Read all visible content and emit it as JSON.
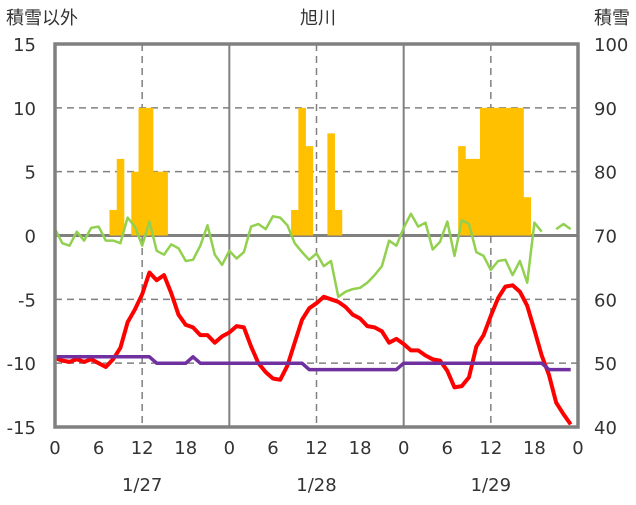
{
  "chart_data": {
    "type": "bar+line",
    "title": "旭川",
    "ylabel_left": "積雪以外",
    "ylabel_right": "積雪",
    "ylim_left": [
      -15,
      15
    ],
    "ylim_right": [
      40,
      100
    ],
    "yticks_left": [
      "15",
      "10",
      "5",
      "0",
      "-5",
      "-10",
      "-15"
    ],
    "yticks_right": [
      "100",
      "90",
      "80",
      "70",
      "60",
      "50",
      "40"
    ],
    "xtick_labels": [
      "0",
      "6",
      "12",
      "18",
      "0",
      "6",
      "12",
      "18",
      "0",
      "6",
      "12",
      "18",
      "0"
    ],
    "date_labels": [
      "1/27",
      "1/28",
      "1/29"
    ],
    "x_hours": 72,
    "grid": "dashed horizontal at ±5, ±10; dashed vertical at 12h; solid at day boundaries",
    "colors": {
      "bars": "#FFC000",
      "red": "#FF0000",
      "green": "#92D050",
      "purple": "#7030A0",
      "axis": "#808080"
    },
    "bars": {
      "axis": "left",
      "hours": [
        8,
        9,
        11,
        12,
        13,
        14,
        15,
        33,
        34,
        35,
        38,
        39,
        56,
        57,
        58,
        59,
        60,
        61,
        62,
        63,
        64,
        65
      ],
      "values": [
        2,
        6,
        5,
        10,
        10,
        5,
        5,
        2,
        10,
        7,
        8,
        2,
        7,
        6,
        6,
        10,
        10,
        10,
        10,
        10,
        10,
        3
      ]
    },
    "series": [
      {
        "name": "red",
        "axis": "left",
        "values": [
          -9.6,
          -9.8,
          -9.9,
          -9.7,
          -9.9,
          -9.7,
          -10.0,
          -10.3,
          -9.7,
          -8.8,
          -6.8,
          -5.8,
          -4.6,
          -2.9,
          -3.5,
          -3.1,
          -4.5,
          -6.2,
          -7.0,
          -7.2,
          -7.8,
          -7.8,
          -8.4,
          -7.9,
          -7.6,
          -7.1,
          -7.2,
          -8.7,
          -10.0,
          -10.7,
          -11.2,
          -11.3,
          -10.2,
          -8.4,
          -6.6,
          -5.7,
          -5.3,
          -4.8,
          -5.0,
          -5.2,
          -5.6,
          -6.2,
          -6.5,
          -7.1,
          -7.2,
          -7.5,
          -8.4,
          -8.1,
          -8.5,
          -9.0,
          -9.0,
          -9.4,
          -9.7,
          -9.8,
          -10.6,
          -11.9,
          -11.8,
          -11.1,
          -8.7,
          -7.8,
          -6.3,
          -4.9,
          -4.0,
          -3.9,
          -4.4,
          -5.5,
          -7.4,
          -9.4,
          -10.9,
          -13.1,
          -14.0,
          -14.8
        ]
      },
      {
        "name": "green",
        "axis": "left",
        "values": [
          0.5,
          -0.6,
          -0.8,
          0.3,
          -0.4,
          0.6,
          0.7,
          -0.4,
          -0.4,
          -0.6,
          1.4,
          0.7,
          -0.8,
          1.1,
          -1.2,
          -1.5,
          -0.7,
          -1.0,
          -2.0,
          -1.9,
          -0.8,
          0.8,
          -1.5,
          -2.3,
          -1.2,
          -1.8,
          -1.3,
          0.7,
          0.9,
          0.5,
          1.5,
          1.4,
          0.8,
          -0.6,
          -1.3,
          -1.9,
          -1.4,
          -2.4,
          -2.0,
          -4.8,
          -4.4,
          -4.2,
          -4.1,
          -3.7,
          -3.1,
          -2.4,
          -0.4,
          -0.8,
          0.6,
          1.7,
          0.7,
          1.0,
          -1.1,
          -0.5,
          1.1,
          -1.6,
          1.2,
          0.9,
          -1.3,
          -1.6,
          -2.7,
          -2.0,
          -1.9,
          -3.1,
          -2.0,
          -3.7,
          1.0,
          0.3,
          null,
          0.5,
          0.9,
          0.5
        ]
      },
      {
        "name": "purple",
        "axis": "right",
        "values": [
          51,
          51,
          51,
          51,
          51,
          51,
          51,
          51,
          51,
          51,
          51,
          51,
          51,
          51,
          50,
          50,
          50,
          50,
          50,
          51,
          50,
          50,
          50,
          50,
          50,
          50,
          50,
          50,
          50,
          50,
          50,
          50,
          50,
          50,
          50,
          49,
          49,
          49,
          49,
          49,
          49,
          49,
          49,
          49,
          49,
          49,
          49,
          49,
          50,
          50,
          50,
          50,
          50,
          50,
          50,
          50,
          50,
          50,
          50,
          50,
          50,
          50,
          50,
          50,
          50,
          50,
          50,
          50,
          49,
          49,
          49,
          49
        ]
      }
    ]
  }
}
